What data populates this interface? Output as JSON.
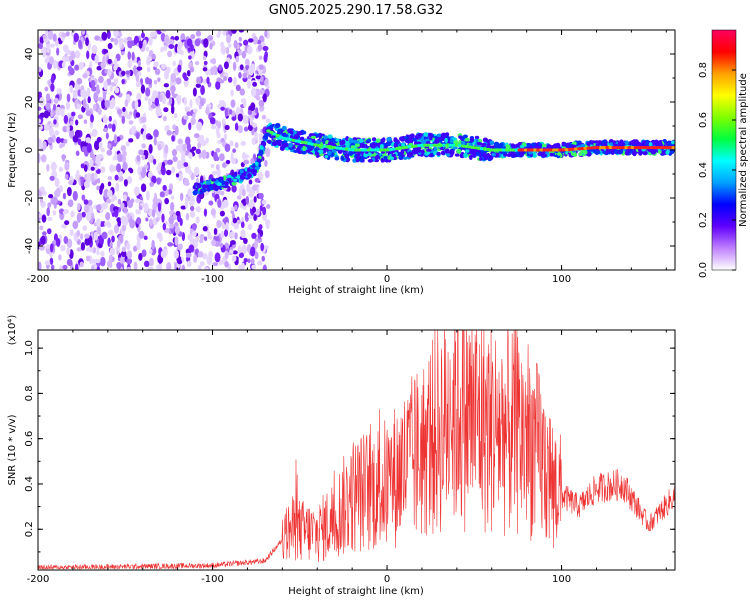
{
  "chart_data": [
    {
      "type": "heatmap",
      "title": "GN05.2025.290.17.58.G32",
      "xlabel": "Height of straight line (km)",
      "ylabel": "Frequency (Hz)",
      "xlim": [
        -200,
        165
      ],
      "ylim": [
        -50,
        50
      ],
      "x_ticks": [
        -200,
        -100,
        0,
        100
      ],
      "y_ticks": [
        -40,
        -20,
        0,
        20,
        40
      ],
      "x_tick_labels": [
        "-200",
        "-100",
        "0",
        "100"
      ],
      "y_tick_labels": [
        "-40",
        "-20",
        "0",
        "20",
        "40"
      ],
      "colorbar": {
        "label": "Normalized spectral amplitude",
        "range": [
          0.0,
          0.96
        ],
        "ticks": [
          0.0,
          0.2,
          0.4,
          0.6,
          0.8
        ],
        "tick_labels": [
          "0.0",
          "0.2",
          "0.4",
          "0.6",
          "0.8"
        ],
        "colors": [
          "#ffffff",
          "#c080ff",
          "#6000ff",
          "#0000ff",
          "#00a0ff",
          "#00ffff",
          "#00ff40",
          "#80ff00",
          "#ffff00",
          "#ffa000",
          "#ff0000",
          "#ff0060"
        ]
      },
      "noise_region_x": [
        -200,
        -68
      ],
      "signal_track": {
        "x": [
          -110,
          -90,
          -75,
          -68,
          -60,
          -40,
          -20,
          0,
          20,
          40,
          60,
          80,
          100,
          120,
          140,
          165
        ],
        "y": [
          -16,
          -13,
          -8,
          8,
          5,
          2,
          0,
          0,
          2,
          2,
          0,
          0,
          0,
          1,
          1,
          1
        ]
      }
    },
    {
      "type": "line",
      "xlabel": "Height of straight line (km)",
      "ylabel": "SNR (10 * v/v)",
      "y_scale_label": "(x10⁴)",
      "xlim": [
        -200,
        165
      ],
      "ylim": [
        0.02,
        1.08
      ],
      "x_ticks": [
        -200,
        -100,
        0,
        100
      ],
      "y_ticks": [
        0.2,
        0.4,
        0.6,
        0.8,
        1.0
      ],
      "x_tick_labels": [
        "-200",
        "-100",
        "0",
        "100"
      ],
      "y_tick_labels": [
        "0.2",
        "0.4",
        "0.6",
        "0.8",
        "1.0"
      ],
      "color": "#ee3333",
      "envelope": {
        "x": [
          -200,
          -100,
          -70,
          -55,
          -40,
          -30,
          -20,
          0,
          20,
          40,
          60,
          80,
          100,
          110,
          120,
          135,
          150,
          165
        ],
        "y": [
          0.03,
          0.04,
          0.06,
          0.2,
          0.18,
          0.25,
          0.35,
          0.4,
          0.55,
          0.75,
          0.65,
          0.62,
          0.35,
          0.3,
          0.38,
          0.4,
          0.22,
          0.35
        ]
      }
    }
  ]
}
